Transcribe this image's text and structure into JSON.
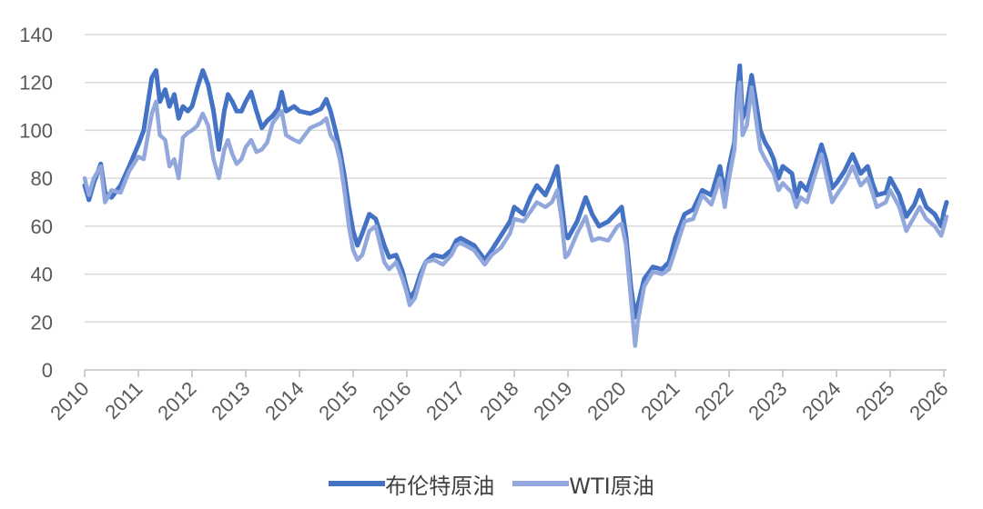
{
  "chart_data": {
    "type": "line",
    "title": "",
    "xlabel": "",
    "ylabel": "",
    "xlim": [
      2010,
      2026.05
    ],
    "ylim": [
      0,
      140
    ],
    "y_ticks": [
      0,
      20,
      40,
      60,
      80,
      100,
      120,
      140
    ],
    "x_ticks": [
      "2010",
      "2011",
      "2012",
      "2013",
      "2014",
      "2015",
      "2016",
      "2017",
      "2018",
      "2019",
      "2020",
      "2021",
      "2022",
      "2023",
      "2024",
      "2025",
      "2026"
    ],
    "grid": "horizontal",
    "legend_position": "bottom-center",
    "series": [
      {
        "name": "布伦特原油",
        "color": "#4472c4",
        "points": [
          [
            2010.0,
            77
          ],
          [
            2010.08,
            71
          ],
          [
            2010.17,
            78
          ],
          [
            2010.3,
            86
          ],
          [
            2010.38,
            74
          ],
          [
            2010.5,
            72
          ],
          [
            2010.67,
            77
          ],
          [
            2010.83,
            85
          ],
          [
            2011.0,
            94
          ],
          [
            2011.1,
            100
          ],
          [
            2011.25,
            122
          ],
          [
            2011.33,
            125
          ],
          [
            2011.4,
            112
          ],
          [
            2011.5,
            117
          ],
          [
            2011.58,
            110
          ],
          [
            2011.67,
            115
          ],
          [
            2011.75,
            105
          ],
          [
            2011.83,
            110
          ],
          [
            2011.92,
            108
          ],
          [
            2012.0,
            110
          ],
          [
            2012.1,
            118
          ],
          [
            2012.2,
            125
          ],
          [
            2012.3,
            119
          ],
          [
            2012.4,
            108
          ],
          [
            2012.5,
            92
          ],
          [
            2012.6,
            108
          ],
          [
            2012.67,
            115
          ],
          [
            2012.75,
            112
          ],
          [
            2012.83,
            108
          ],
          [
            2012.92,
            108
          ],
          [
            2013.0,
            112
          ],
          [
            2013.1,
            116
          ],
          [
            2013.2,
            108
          ],
          [
            2013.3,
            101
          ],
          [
            2013.4,
            104
          ],
          [
            2013.5,
            106
          ],
          [
            2013.6,
            109
          ],
          [
            2013.67,
            116
          ],
          [
            2013.75,
            108
          ],
          [
            2013.9,
            110
          ],
          [
            2014.0,
            108
          ],
          [
            2014.2,
            107
          ],
          [
            2014.4,
            109
          ],
          [
            2014.5,
            113
          ],
          [
            2014.58,
            108
          ],
          [
            2014.67,
            100
          ],
          [
            2014.75,
            92
          ],
          [
            2014.83,
            82
          ],
          [
            2014.92,
            68
          ],
          [
            2015.0,
            58
          ],
          [
            2015.08,
            52
          ],
          [
            2015.17,
            57
          ],
          [
            2015.3,
            65
          ],
          [
            2015.42,
            63
          ],
          [
            2015.58,
            52
          ],
          [
            2015.67,
            47
          ],
          [
            2015.8,
            48
          ],
          [
            2015.92,
            41
          ],
          [
            2016.0,
            34
          ],
          [
            2016.05,
            30
          ],
          [
            2016.15,
            33
          ],
          [
            2016.25,
            40
          ],
          [
            2016.35,
            45
          ],
          [
            2016.5,
            48
          ],
          [
            2016.67,
            47
          ],
          [
            2016.83,
            50
          ],
          [
            2016.92,
            54
          ],
          [
            2017.0,
            55
          ],
          [
            2017.25,
            52
          ],
          [
            2017.45,
            46
          ],
          [
            2017.58,
            50
          ],
          [
            2017.75,
            56
          ],
          [
            2017.92,
            62
          ],
          [
            2018.0,
            68
          ],
          [
            2018.17,
            65
          ],
          [
            2018.3,
            72
          ],
          [
            2018.42,
            77
          ],
          [
            2018.58,
            73
          ],
          [
            2018.7,
            79
          ],
          [
            2018.8,
            85
          ],
          [
            2018.88,
            70
          ],
          [
            2018.95,
            57
          ],
          [
            2019.0,
            55
          ],
          [
            2019.17,
            62
          ],
          [
            2019.33,
            72
          ],
          [
            2019.45,
            65
          ],
          [
            2019.58,
            60
          ],
          [
            2019.75,
            62
          ],
          [
            2019.92,
            66
          ],
          [
            2020.0,
            68
          ],
          [
            2020.08,
            56
          ],
          [
            2020.17,
            35
          ],
          [
            2020.25,
            22
          ],
          [
            2020.3,
            27
          ],
          [
            2020.42,
            38
          ],
          [
            2020.58,
            43
          ],
          [
            2020.75,
            42
          ],
          [
            2020.88,
            45
          ],
          [
            2021.0,
            55
          ],
          [
            2021.17,
            65
          ],
          [
            2021.33,
            67
          ],
          [
            2021.5,
            75
          ],
          [
            2021.67,
            73
          ],
          [
            2021.83,
            85
          ],
          [
            2021.92,
            73
          ],
          [
            2022.0,
            85
          ],
          [
            2022.1,
            95
          ],
          [
            2022.15,
            115
          ],
          [
            2022.2,
            127
          ],
          [
            2022.25,
            105
          ],
          [
            2022.33,
            110
          ],
          [
            2022.42,
            123
          ],
          [
            2022.5,
            112
          ],
          [
            2022.58,
            100
          ],
          [
            2022.67,
            95
          ],
          [
            2022.75,
            92
          ],
          [
            2022.83,
            88
          ],
          [
            2022.92,
            80
          ],
          [
            2023.0,
            85
          ],
          [
            2023.17,
            82
          ],
          [
            2023.25,
            72
          ],
          [
            2023.33,
            78
          ],
          [
            2023.45,
            75
          ],
          [
            2023.58,
            84
          ],
          [
            2023.72,
            94
          ],
          [
            2023.8,
            88
          ],
          [
            2023.92,
            76
          ],
          [
            2024.0,
            78
          ],
          [
            2024.15,
            83
          ],
          [
            2024.3,
            90
          ],
          [
            2024.45,
            82
          ],
          [
            2024.58,
            85
          ],
          [
            2024.67,
            78
          ],
          [
            2024.75,
            73
          ],
          [
            2024.92,
            74
          ],
          [
            2025.0,
            80
          ],
          [
            2025.17,
            73
          ],
          [
            2025.3,
            64
          ],
          [
            2025.45,
            69
          ],
          [
            2025.55,
            75
          ],
          [
            2025.67,
            68
          ],
          [
            2025.83,
            65
          ],
          [
            2025.95,
            60
          ],
          [
            2026.0,
            66
          ],
          [
            2026.05,
            70
          ]
        ]
      },
      {
        "name": "WTI原油",
        "color": "#92a8dc",
        "points": [
          [
            2010.0,
            80
          ],
          [
            2010.08,
            73
          ],
          [
            2010.17,
            80
          ],
          [
            2010.3,
            85
          ],
          [
            2010.38,
            70
          ],
          [
            2010.5,
            75
          ],
          [
            2010.67,
            74
          ],
          [
            2010.83,
            83
          ],
          [
            2011.0,
            89
          ],
          [
            2011.1,
            88
          ],
          [
            2011.25,
            107
          ],
          [
            2011.33,
            112
          ],
          [
            2011.4,
            98
          ],
          [
            2011.5,
            96
          ],
          [
            2011.58,
            85
          ],
          [
            2011.67,
            88
          ],
          [
            2011.75,
            80
          ],
          [
            2011.83,
            97
          ],
          [
            2011.92,
            99
          ],
          [
            2012.0,
            100
          ],
          [
            2012.1,
            102
          ],
          [
            2012.2,
            107
          ],
          [
            2012.3,
            102
          ],
          [
            2012.4,
            88
          ],
          [
            2012.5,
            80
          ],
          [
            2012.6,
            92
          ],
          [
            2012.67,
            96
          ],
          [
            2012.75,
            90
          ],
          [
            2012.83,
            86
          ],
          [
            2012.92,
            88
          ],
          [
            2013.0,
            93
          ],
          [
            2013.1,
            96
          ],
          [
            2013.2,
            91
          ],
          [
            2013.3,
            92
          ],
          [
            2013.4,
            95
          ],
          [
            2013.5,
            103
          ],
          [
            2013.6,
            106
          ],
          [
            2013.67,
            108
          ],
          [
            2013.75,
            98
          ],
          [
            2013.9,
            96
          ],
          [
            2014.0,
            95
          ],
          [
            2014.2,
            101
          ],
          [
            2014.4,
            103
          ],
          [
            2014.5,
            105
          ],
          [
            2014.58,
            98
          ],
          [
            2014.67,
            95
          ],
          [
            2014.75,
            88
          ],
          [
            2014.83,
            76
          ],
          [
            2014.92,
            60
          ],
          [
            2015.0,
            50
          ],
          [
            2015.08,
            46
          ],
          [
            2015.17,
            48
          ],
          [
            2015.3,
            58
          ],
          [
            2015.42,
            60
          ],
          [
            2015.58,
            45
          ],
          [
            2015.67,
            42
          ],
          [
            2015.8,
            45
          ],
          [
            2015.92,
            38
          ],
          [
            2016.0,
            32
          ],
          [
            2016.05,
            27
          ],
          [
            2016.15,
            30
          ],
          [
            2016.25,
            38
          ],
          [
            2016.35,
            45
          ],
          [
            2016.5,
            46
          ],
          [
            2016.67,
            44
          ],
          [
            2016.83,
            48
          ],
          [
            2016.92,
            52
          ],
          [
            2017.0,
            53
          ],
          [
            2017.25,
            50
          ],
          [
            2017.45,
            44
          ],
          [
            2017.58,
            48
          ],
          [
            2017.75,
            51
          ],
          [
            2017.92,
            57
          ],
          [
            2018.0,
            63
          ],
          [
            2018.17,
            62
          ],
          [
            2018.3,
            66
          ],
          [
            2018.42,
            70
          ],
          [
            2018.58,
            68
          ],
          [
            2018.7,
            70
          ],
          [
            2018.8,
            75
          ],
          [
            2018.88,
            63
          ],
          [
            2018.95,
            47
          ],
          [
            2019.0,
            48
          ],
          [
            2019.17,
            57
          ],
          [
            2019.33,
            64
          ],
          [
            2019.45,
            54
          ],
          [
            2019.58,
            55
          ],
          [
            2019.75,
            54
          ],
          [
            2019.92,
            60
          ],
          [
            2020.0,
            61
          ],
          [
            2020.08,
            52
          ],
          [
            2020.17,
            30
          ],
          [
            2020.25,
            10
          ],
          [
            2020.3,
            20
          ],
          [
            2020.42,
            35
          ],
          [
            2020.58,
            41
          ],
          [
            2020.75,
            40
          ],
          [
            2020.88,
            42
          ],
          [
            2021.0,
            50
          ],
          [
            2021.17,
            62
          ],
          [
            2021.33,
            63
          ],
          [
            2021.5,
            73
          ],
          [
            2021.67,
            69
          ],
          [
            2021.83,
            80
          ],
          [
            2021.92,
            68
          ],
          [
            2022.0,
            80
          ],
          [
            2022.1,
            92
          ],
          [
            2022.15,
            110
          ],
          [
            2022.2,
            120
          ],
          [
            2022.25,
            98
          ],
          [
            2022.33,
            102
          ],
          [
            2022.42,
            118
          ],
          [
            2022.5,
            105
          ],
          [
            2022.58,
            92
          ],
          [
            2022.67,
            88
          ],
          [
            2022.75,
            85
          ],
          [
            2022.83,
            82
          ],
          [
            2022.92,
            75
          ],
          [
            2023.0,
            78
          ],
          [
            2023.17,
            74
          ],
          [
            2023.25,
            68
          ],
          [
            2023.33,
            72
          ],
          [
            2023.45,
            70
          ],
          [
            2023.58,
            80
          ],
          [
            2023.72,
            90
          ],
          [
            2023.8,
            82
          ],
          [
            2023.92,
            70
          ],
          [
            2024.0,
            73
          ],
          [
            2024.15,
            78
          ],
          [
            2024.3,
            85
          ],
          [
            2024.45,
            77
          ],
          [
            2024.58,
            80
          ],
          [
            2024.67,
            74
          ],
          [
            2024.75,
            68
          ],
          [
            2024.92,
            70
          ],
          [
            2025.0,
            75
          ],
          [
            2025.17,
            68
          ],
          [
            2025.3,
            58
          ],
          [
            2025.45,
            64
          ],
          [
            2025.55,
            68
          ],
          [
            2025.67,
            63
          ],
          [
            2025.83,
            60
          ],
          [
            2025.95,
            56
          ],
          [
            2026.0,
            60
          ],
          [
            2026.05,
            64
          ]
        ]
      }
    ]
  }
}
